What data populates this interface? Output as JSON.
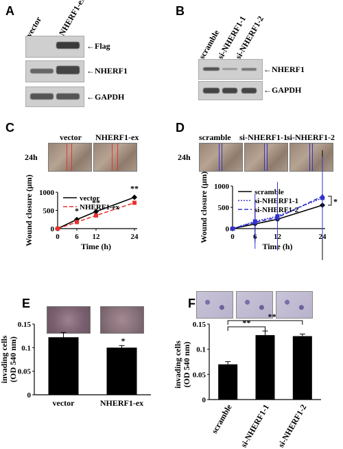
{
  "panels": {
    "A": "A",
    "B": "B",
    "C": "C",
    "D": "D",
    "E": "E",
    "F": "F"
  },
  "panelA": {
    "lanes": [
      "vector",
      "NHERF1-ex"
    ],
    "bands": [
      "←Flag",
      "←NHERF1",
      "←GAPDH"
    ]
  },
  "panelB": {
    "lanes": [
      "scramble",
      "si-NHERF1-1",
      "si-NHERF1-2"
    ],
    "bands": [
      "←NHERF1",
      "←GAPDH"
    ]
  },
  "panelC": {
    "time_label": "24h",
    "columns": [
      "vector",
      "NHERF1-ex"
    ]
  },
  "panelD": {
    "time_label": "24h",
    "columns": [
      "scramble",
      "si-NHERF1-1",
      "si-NHERF1-2"
    ]
  },
  "colors": {
    "black": "#000000",
    "red": "#e8322e",
    "blue": "#3333cc"
  },
  "chart_data": [
    {
      "id": "C",
      "type": "line",
      "xlabel": "Time (h)",
      "ylabel": "Wound closure (μm)",
      "x": [
        0,
        6,
        12,
        24
      ],
      "xticks": [
        "0",
        "6",
        "12",
        "24"
      ],
      "ylim": [
        0,
        1000
      ],
      "yticks": [
        "0",
        "500",
        "1000"
      ],
      "series": [
        {
          "name": "vector",
          "values": [
            0,
            250,
            470,
            860
          ],
          "color": "#000000"
        },
        {
          "name": "NHERF1-ex",
          "values": [
            0,
            180,
            360,
            710
          ],
          "color": "#e8322e"
        }
      ],
      "annotations": [
        "*",
        "**",
        "**"
      ],
      "legend": "top-left"
    },
    {
      "id": "D",
      "type": "line",
      "xlabel": "Time (h)",
      "ylabel": "Wound closure (μm)",
      "x": [
        0,
        6,
        12,
        24
      ],
      "xticks": [
        "0",
        "6",
        "12",
        "24"
      ],
      "ylim": [
        0,
        1000
      ],
      "yticks": [
        "0",
        "500",
        "1000"
      ],
      "series": [
        {
          "name": "scramble",
          "values": [
            0,
            110,
            220,
            550
          ],
          "color": "#000000"
        },
        {
          "name": "si-NHERF1-1",
          "values": [
            0,
            170,
            290,
            720
          ],
          "color": "#3333cc"
        },
        {
          "name": "si-NHERF1-2",
          "values": [
            0,
            150,
            260,
            760
          ],
          "color": "#3333cc"
        }
      ],
      "annotations": [
        "*"
      ],
      "legend": "top-left"
    },
    {
      "id": "E",
      "type": "bar",
      "ylabel": "invading cells (OD 540 nm)",
      "categories": [
        "vector",
        "NHERF1-ex"
      ],
      "values": [
        0.122,
        0.1
      ],
      "ylim": [
        0,
        0.15
      ],
      "yticks": [
        "0",
        "0.05",
        "0.1",
        "0.15"
      ],
      "annotations": [
        "*"
      ]
    },
    {
      "id": "F",
      "type": "bar",
      "ylabel": "invading cells (OD 540 nm)",
      "categories": [
        "scramble",
        "si-NHERF1-1",
        "si-NHERF1-2"
      ],
      "values": [
        0.07,
        0.128,
        0.126
      ],
      "ylim": [
        0,
        0.15
      ],
      "yticks": [
        "0",
        "0.05",
        "0.1",
        "0.15"
      ],
      "annotations": [
        "**",
        "**"
      ]
    }
  ]
}
